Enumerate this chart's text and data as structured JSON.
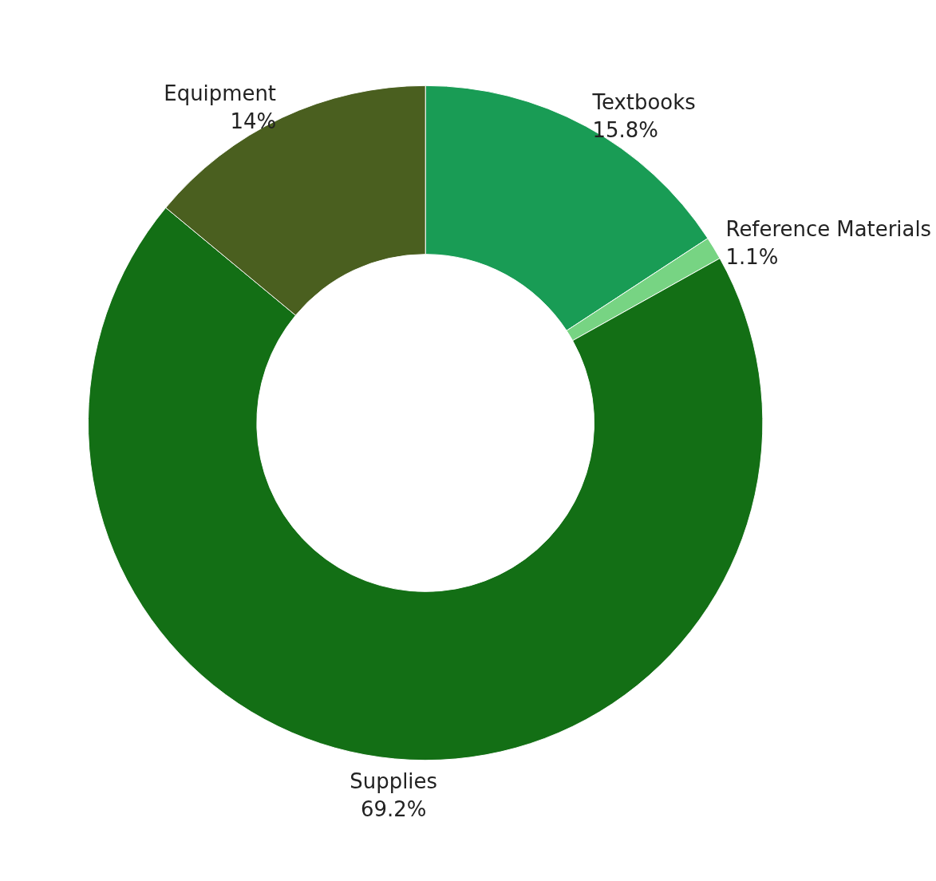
{
  "chart_data": {
    "type": "donut",
    "categories": [
      "Textbooks",
      "Reference Materials",
      "Supplies",
      "Equipment"
    ],
    "values": [
      15.8,
      1.1,
      69.2,
      14
    ],
    "value_labels": [
      "15.8%",
      "1.1%",
      "69.2%",
      "14%"
    ],
    "colors": [
      "#199c55",
      "#77d483",
      "#136f15",
      "#4a5f1f"
    ],
    "legend": false
  }
}
